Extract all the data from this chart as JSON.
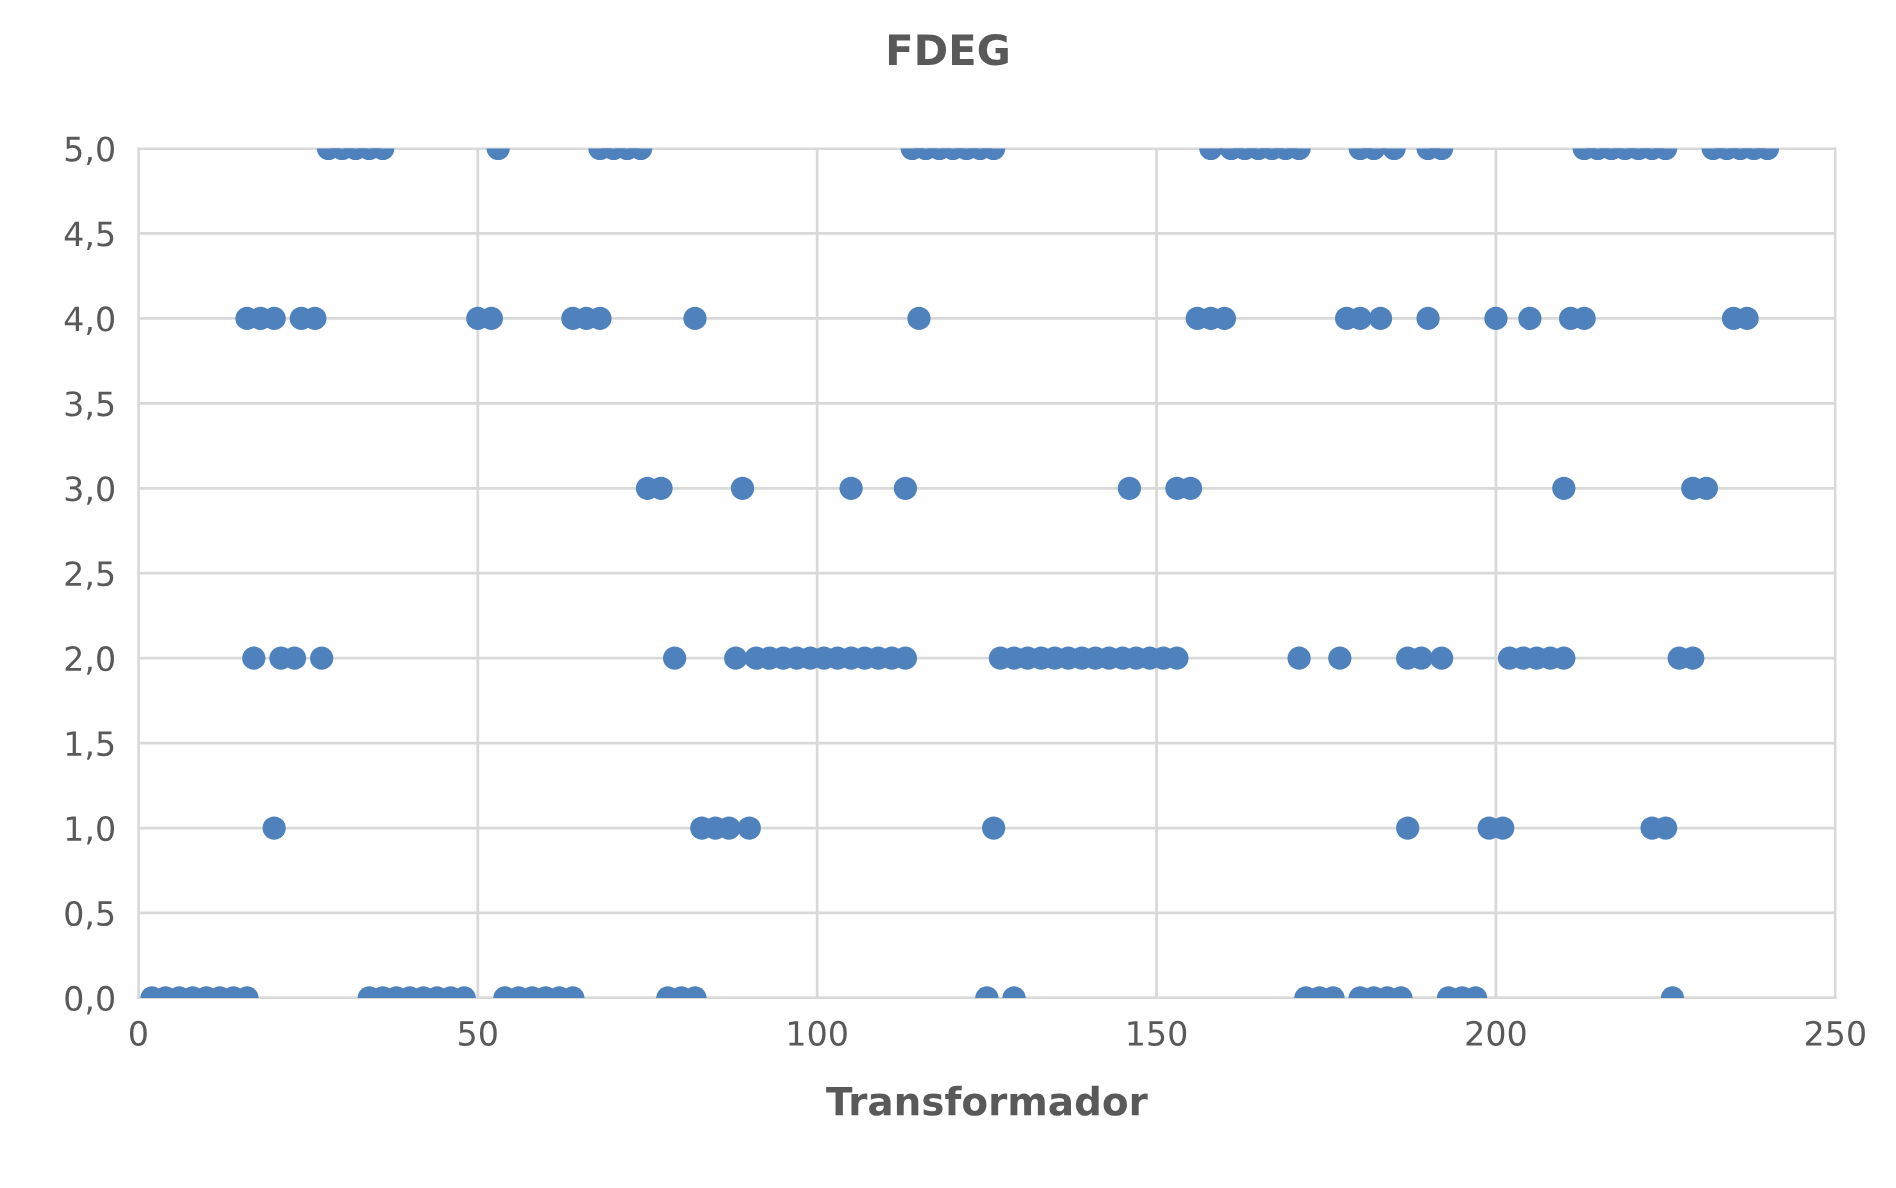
{
  "chart_data": {
    "type": "scatter",
    "title": "FDEG",
    "xlabel": "Transformador",
    "xlim": [
      0,
      250
    ],
    "xticks": [
      0,
      50,
      100,
      150,
      200,
      250
    ],
    "ylim": [
      0,
      5
    ],
    "yticks": [
      {
        "value": 0,
        "label": "0,0"
      },
      {
        "value": 0.5,
        "label": "0,5"
      },
      {
        "value": 1,
        "label": "1,0"
      },
      {
        "value": 1.5,
        "label": "1,5"
      },
      {
        "value": 2,
        "label": "2,0"
      },
      {
        "value": 2.5,
        "label": "2,5"
      },
      {
        "value": 3,
        "label": "3,0"
      },
      {
        "value": 3.5,
        "label": "3,5"
      },
      {
        "value": 4,
        "label": "4,0"
      },
      {
        "value": 4.5,
        "label": "4,5"
      },
      {
        "value": 5,
        "label": "5,0"
      }
    ],
    "grid": true,
    "marker": "circle",
    "legend": false,
    "series": [
      {
        "color": "#4f81bd",
        "x": [
          2,
          4,
          6,
          8,
          10,
          12,
          14,
          16,
          34,
          36,
          38,
          40,
          42,
          44,
          46,
          48,
          54,
          56,
          58,
          60,
          62,
          64,
          78,
          80,
          82,
          125,
          129,
          172,
          174,
          176,
          180,
          182,
          184,
          186,
          193,
          195,
          197,
          226
        ],
        "values": [
          0,
          0,
          0,
          0,
          0,
          0,
          0,
          0,
          0,
          0,
          0,
          0,
          0,
          0,
          0,
          0,
          0,
          0,
          0,
          0,
          0,
          0,
          0,
          0,
          0,
          0,
          0,
          0,
          0,
          0,
          0,
          0,
          0,
          0,
          0,
          0,
          0,
          0
        ]
      },
      {
        "color": "#4f81bd",
        "x": [
          20,
          83,
          85,
          87,
          90,
          126,
          187,
          199,
          201,
          223,
          225
        ],
        "values": [
          1,
          1,
          1,
          1,
          1,
          1,
          1,
          1,
          1,
          1,
          1
        ]
      },
      {
        "color": "#4f81bd",
        "x": [
          17,
          21,
          23,
          27,
          79,
          88,
          91,
          93,
          95,
          97,
          99,
          101,
          103,
          105,
          107,
          109,
          111,
          113,
          127,
          129,
          131,
          133,
          135,
          137,
          139,
          141,
          143,
          145,
          147,
          149,
          151,
          153,
          171,
          177,
          187,
          189,
          192,
          202,
          204,
          206,
          208,
          210,
          227,
          229
        ],
        "values": [
          2,
          2,
          2,
          2,
          2,
          2,
          2,
          2,
          2,
          2,
          2,
          2,
          2,
          2,
          2,
          2,
          2,
          2,
          2,
          2,
          2,
          2,
          2,
          2,
          2,
          2,
          2,
          2,
          2,
          2,
          2,
          2,
          2,
          2,
          2,
          2,
          2,
          2,
          2,
          2,
          2,
          2,
          2,
          2
        ]
      },
      {
        "color": "#4f81bd",
        "x": [
          75,
          77,
          89,
          105,
          113,
          146,
          153,
          155,
          210,
          229,
          231
        ],
        "values": [
          3,
          3,
          3,
          3,
          3,
          3,
          3,
          3,
          3,
          3,
          3
        ]
      },
      {
        "color": "#4f81bd",
        "x": [
          16,
          18,
          20,
          24,
          26,
          50,
          52,
          64,
          66,
          68,
          82,
          115,
          156,
          158,
          160,
          178,
          180,
          183,
          190,
          200,
          205,
          211,
          213,
          235,
          237
        ],
        "values": [
          4,
          4,
          4,
          4,
          4,
          4,
          4,
          4,
          4,
          4,
          4,
          4,
          4,
          4,
          4,
          4,
          4,
          4,
          4,
          4,
          4,
          4,
          4,
          4,
          4
        ]
      },
      {
        "color": "#4f81bd",
        "x": [
          28,
          30,
          32,
          34,
          36,
          53,
          68,
          70,
          72,
          74,
          114,
          116,
          118,
          120,
          122,
          124,
          126,
          158,
          161,
          163,
          165,
          167,
          169,
          171,
          180,
          182,
          185,
          190,
          192,
          213,
          215,
          217,
          219,
          221,
          223,
          225,
          232,
          234,
          236,
          238,
          240
        ],
        "values": [
          5,
          5,
          5,
          5,
          5,
          5,
          5,
          5,
          5,
          5,
          5,
          5,
          5,
          5,
          5,
          5,
          5,
          5,
          5,
          5,
          5,
          5,
          5,
          5,
          5,
          5,
          5,
          5,
          5,
          5,
          5,
          5,
          5,
          5,
          5,
          5,
          5,
          5,
          5,
          5,
          5
        ]
      }
    ]
  }
}
